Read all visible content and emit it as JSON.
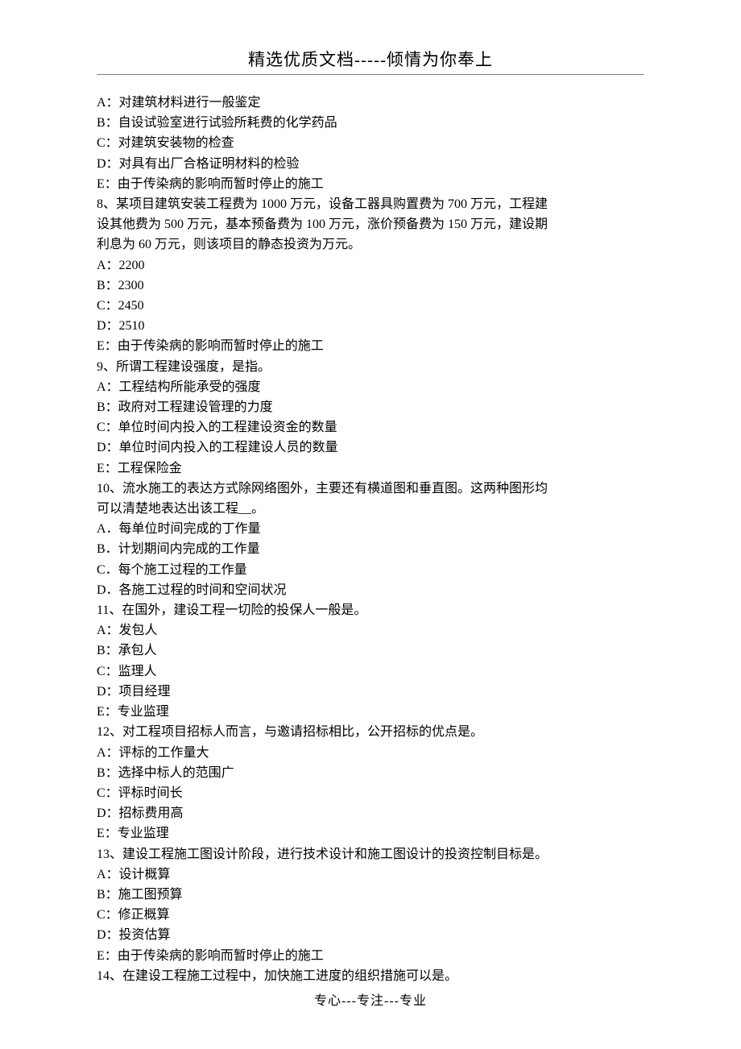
{
  "header": {
    "title": "精选优质文档-----倾情为你奉上"
  },
  "content": {
    "lines": [
      "A：对建筑材料进行一般鉴定",
      "B：自设试验室进行试验所耗费的化学药品",
      "C：对建筑安装物的检查",
      "D：对具有出厂合格证明材料的检验",
      "E：由于传染病的影响而暂时停止的施工",
      "8、某项目建筑安装工程费为 1000 万元，设备工器具购置费为 700 万元，工程建",
      "设其他费为 500 万元，基本预备费为 100 万元，涨价预备费为 150 万元，建设期",
      "利息为 60 万元，则该项目的静态投资为万元。",
      "A：2200",
      "B：2300",
      "C：2450",
      "D：2510",
      "E：由于传染病的影响而暂时停止的施工",
      "9、所谓工程建设强度，是指。",
      "A：工程结构所能承受的强度",
      "B：政府对工程建设管理的力度",
      "C：单位时间内投入的工程建设资金的数量",
      "D：单位时间内投入的工程建设人员的数量",
      "E：工程保险金",
      "10、流水施工的表达方式除网络图外，主要还有横道图和垂直图。这两种图形均",
      "可以清楚地表达出该工程__。",
      "A．每单位时间完成的丁作量",
      "B．计划期间内完成的工作量",
      "C．每个施工过程的工作量",
      "D．各施工过程的时间和空间状况",
      "11、在国外，建设工程一切险的投保人一般是。",
      "A：发包人",
      "B：承包人",
      "C：监理人",
      "D：项目经理",
      "E：专业监理",
      "12、对工程项目招标人而言，与邀请招标相比，公开招标的优点是。",
      "A：评标的工作量大",
      "B：选择中标人的范围广",
      "C：评标时间长",
      "D：招标费用高",
      "E：专业监理",
      "13、建设工程施工图设计阶段，进行技术设计和施工图设计的投资控制目标是。",
      "A：设计概算",
      "B：施工图预算",
      "C：修正概算",
      "D：投资估算",
      "E：由于传染病的影响而暂时停止的施工",
      "14、在建设工程施工过程中，加快施工进度的组织措施可以是。"
    ]
  },
  "footer": {
    "text": "专心---专注---专业"
  }
}
